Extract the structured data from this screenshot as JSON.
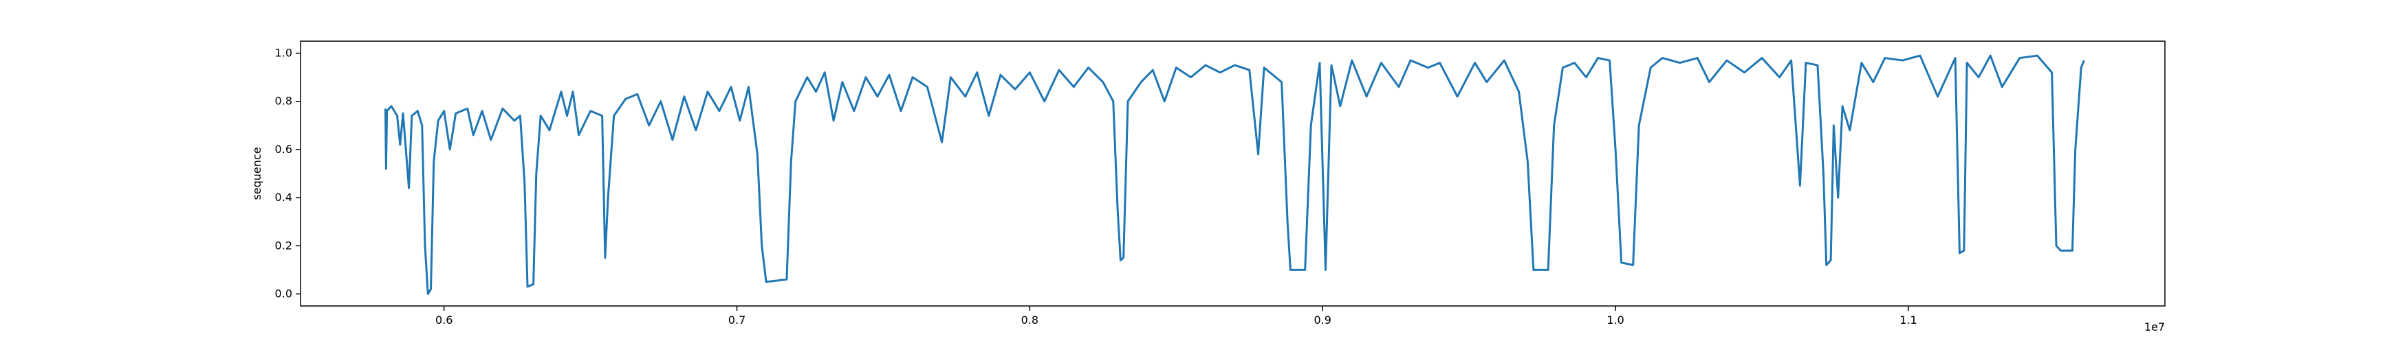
{
  "chart_data": {
    "type": "line",
    "y_label": "sequence",
    "x_offset_label": "1e7",
    "x": [
      0.58,
      0.5802,
      0.5805,
      0.582,
      0.584,
      0.585,
      0.586,
      0.588,
      0.589,
      0.591,
      0.5925,
      0.5935,
      0.5945,
      0.5955,
      0.5965,
      0.598,
      0.6,
      0.602,
      0.604,
      0.608,
      0.61,
      0.613,
      0.616,
      0.62,
      0.624,
      0.626,
      0.6275,
      0.6285,
      0.6305,
      0.6315,
      0.633,
      0.636,
      0.64,
      0.642,
      0.644,
      0.646,
      0.65,
      0.654,
      0.655,
      0.656,
      0.658,
      0.662,
      0.666,
      0.67,
      0.674,
      0.678,
      0.682,
      0.686,
      0.69,
      0.694,
      0.698,
      0.701,
      0.704,
      0.707,
      0.7085,
      0.71,
      0.717,
      0.7185,
      0.72,
      0.724,
      0.727,
      0.73,
      0.733,
      0.736,
      0.74,
      0.744,
      0.748,
      0.752,
      0.756,
      0.76,
      0.765,
      0.77,
      0.773,
      0.778,
      0.782,
      0.786,
      0.79,
      0.795,
      0.8,
      0.805,
      0.81,
      0.815,
      0.82,
      0.825,
      0.8285,
      0.83,
      0.831,
      0.832,
      0.8335,
      0.838,
      0.842,
      0.846,
      0.85,
      0.855,
      0.86,
      0.865,
      0.87,
      0.875,
      0.878,
      0.88,
      0.886,
      0.888,
      0.889,
      0.894,
      0.896,
      0.899,
      0.901,
      0.903,
      0.906,
      0.91,
      0.915,
      0.92,
      0.926,
      0.93,
      0.936,
      0.94,
      0.946,
      0.952,
      0.956,
      0.962,
      0.967,
      0.97,
      0.972,
      0.977,
      0.979,
      0.982,
      0.986,
      0.99,
      0.994,
      0.998,
      1.0,
      1.002,
      1.006,
      1.008,
      1.012,
      1.016,
      1.022,
      1.028,
      1.032,
      1.038,
      1.044,
      1.05,
      1.056,
      1.06,
      1.063,
      1.065,
      1.069,
      1.071,
      1.072,
      1.0735,
      1.0745,
      1.076,
      1.0775,
      1.08,
      1.084,
      1.088,
      1.092,
      1.098,
      1.104,
      1.11,
      1.116,
      1.1175,
      1.119,
      1.12,
      1.124,
      1.128,
      1.132,
      1.138,
      1.144,
      1.149,
      1.1505,
      1.152,
      1.156,
      1.157,
      1.159,
      1.16
    ],
    "series": [
      {
        "color": "#1f77b4",
        "values": [
          0.77,
          0.52,
          0.76,
          0.78,
          0.74,
          0.62,
          0.75,
          0.44,
          0.74,
          0.76,
          0.7,
          0.2,
          0.0,
          0.02,
          0.55,
          0.72,
          0.76,
          0.6,
          0.75,
          0.77,
          0.66,
          0.76,
          0.64,
          0.77,
          0.72,
          0.74,
          0.46,
          0.03,
          0.04,
          0.5,
          0.74,
          0.68,
          0.84,
          0.74,
          0.84,
          0.66,
          0.76,
          0.74,
          0.15,
          0.4,
          0.74,
          0.81,
          0.83,
          0.7,
          0.8,
          0.64,
          0.82,
          0.68,
          0.84,
          0.76,
          0.86,
          0.72,
          0.86,
          0.58,
          0.2,
          0.05,
          0.06,
          0.55,
          0.8,
          0.9,
          0.84,
          0.92,
          0.72,
          0.88,
          0.76,
          0.9,
          0.82,
          0.91,
          0.76,
          0.9,
          0.86,
          0.63,
          0.9,
          0.82,
          0.92,
          0.74,
          0.91,
          0.85,
          0.92,
          0.8,
          0.93,
          0.86,
          0.94,
          0.88,
          0.8,
          0.35,
          0.14,
          0.15,
          0.8,
          0.88,
          0.93,
          0.8,
          0.94,
          0.9,
          0.95,
          0.92,
          0.95,
          0.93,
          0.58,
          0.94,
          0.88,
          0.3,
          0.1,
          0.1,
          0.7,
          0.96,
          0.1,
          0.95,
          0.78,
          0.97,
          0.82,
          0.96,
          0.86,
          0.97,
          0.94,
          0.96,
          0.82,
          0.96,
          0.88,
          0.97,
          0.84,
          0.55,
          0.1,
          0.1,
          0.7,
          0.94,
          0.96,
          0.9,
          0.98,
          0.97,
          0.6,
          0.13,
          0.12,
          0.7,
          0.94,
          0.98,
          0.96,
          0.98,
          0.88,
          0.97,
          0.92,
          0.98,
          0.9,
          0.97,
          0.45,
          0.96,
          0.95,
          0.5,
          0.12,
          0.14,
          0.7,
          0.4,
          0.78,
          0.68,
          0.96,
          0.88,
          0.98,
          0.97,
          0.99,
          0.82,
          0.98,
          0.17,
          0.18,
          0.96,
          0.9,
          0.99,
          0.86,
          0.98,
          0.99,
          0.92,
          0.2,
          0.18,
          0.18,
          0.6,
          0.94,
          0.97
        ]
      }
    ],
    "xlim": [
      0.551,
      1.1876
    ],
    "ylim": [
      -0.05,
      1.05
    ],
    "xticks": [
      0.6,
      0.7,
      0.8,
      0.9,
      1.0,
      1.1
    ],
    "yticks": [
      0.0,
      0.2,
      0.4,
      0.6,
      0.8,
      1.0
    ]
  }
}
